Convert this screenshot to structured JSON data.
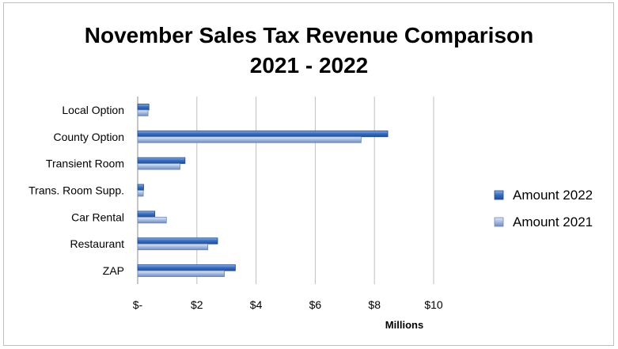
{
  "chart_data": {
    "type": "bar",
    "orientation": "horizontal",
    "title": "November Sales Tax Revenue Comparison",
    "subtitle": "2021 - 2022",
    "xlabel": "Millions",
    "ylabel": "",
    "xlim": [
      0,
      10
    ],
    "x_ticks": [
      0,
      2,
      4,
      6,
      8,
      10
    ],
    "x_tick_labels": [
      "$-",
      "$2",
      "$4",
      "$6",
      "$8",
      "$10"
    ],
    "grid": "vertical",
    "legend_position": "right",
    "categories": [
      "Local Option",
      "County Option",
      "Transient Room",
      "Trans. Room Supp.",
      "Car Rental",
      "Restaurant",
      "ZAP"
    ],
    "series": [
      {
        "name": "Amount 2022",
        "color": "#2e62b0",
        "values": [
          0.38,
          8.45,
          1.6,
          0.2,
          0.58,
          2.7,
          3.3
        ]
      },
      {
        "name": "Amount 2021",
        "color": "#9fb6dc",
        "values": [
          0.35,
          7.55,
          1.43,
          0.19,
          0.97,
          2.37,
          2.93
        ]
      }
    ]
  }
}
